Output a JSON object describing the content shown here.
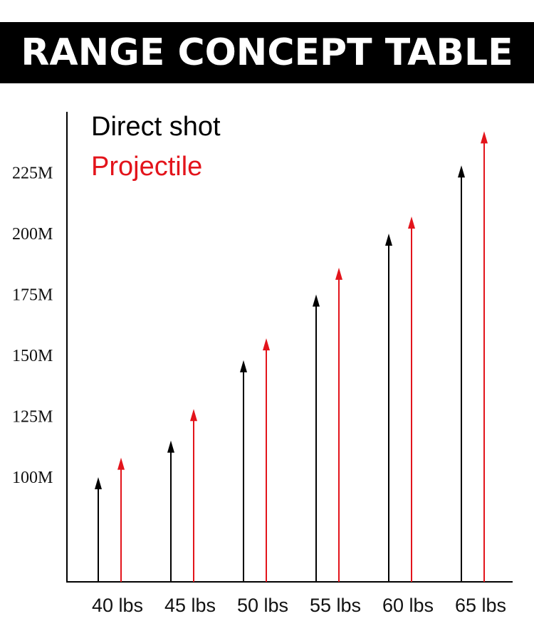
{
  "header": {
    "title": "RANGE CONCEPT TABLE"
  },
  "chart_data": {
    "type": "bar",
    "title": "RANGE CONCEPT TABLE",
    "xlabel": "",
    "ylabel": "",
    "categories": [
      "40 lbs",
      "45 lbs",
      "50 lbs",
      "55 lbs",
      "60 lbs",
      "65 lbs"
    ],
    "series": [
      {
        "name": "Direct shot",
        "color": "#000000",
        "values": [
          100,
          115,
          148,
          175,
          200,
          228
        ]
      },
      {
        "name": "Projectile",
        "color": "#e3141b",
        "values": [
          108,
          128,
          157,
          186,
          207,
          242
        ]
      }
    ],
    "yticks": [
      100,
      125,
      150,
      175,
      200,
      225
    ],
    "ytick_labels": [
      "100M",
      "125M",
      "150M",
      "175M",
      "200M",
      "225M"
    ],
    "ylim": [
      57,
      250
    ],
    "grid": false,
    "legend": "top-left",
    "mark": "arrow"
  }
}
